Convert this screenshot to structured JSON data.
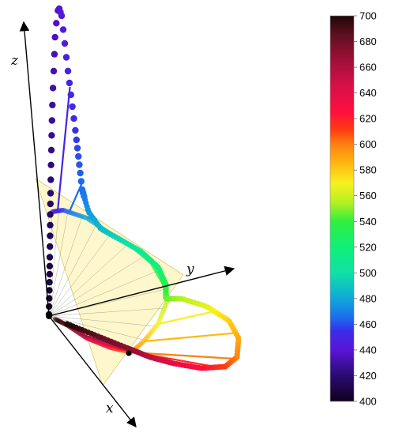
{
  "axes": {
    "x_label": "x",
    "y_label": "y",
    "z_label": "z"
  },
  "colorbar": {
    "ticks": [
      "700",
      "680",
      "660",
      "640",
      "620",
      "600",
      "580",
      "560",
      "540",
      "520",
      "500",
      "480",
      "460",
      "440",
      "420",
      "400"
    ],
    "range": [
      400,
      700
    ],
    "stops": [
      {
        "value": 400,
        "color": "#120020"
      },
      {
        "value": 420,
        "color": "#2a0a70"
      },
      {
        "value": 440,
        "color": "#5a14d8"
      },
      {
        "value": 455,
        "color": "#3a2ee8"
      },
      {
        "value": 465,
        "color": "#1a6cf0"
      },
      {
        "value": 480,
        "color": "#10a8d8"
      },
      {
        "value": 500,
        "color": "#10e0a8"
      },
      {
        "value": 520,
        "color": "#10f078"
      },
      {
        "value": 540,
        "color": "#30ee40"
      },
      {
        "value": 555,
        "color": "#b8f020"
      },
      {
        "value": 570,
        "color": "#f8f020"
      },
      {
        "value": 585,
        "color": "#ffb810"
      },
      {
        "value": 600,
        "color": "#ff8010"
      },
      {
        "value": 612,
        "color": "#ff3810"
      },
      {
        "value": 625,
        "color": "#ff1040"
      },
      {
        "value": 645,
        "color": "#d81048"
      },
      {
        "value": 665,
        "color": "#a01038"
      },
      {
        "value": 685,
        "color": "#601020"
      },
      {
        "value": 700,
        "color": "#1e0808"
      }
    ]
  },
  "chart_data": {
    "type": "3d-curve",
    "wavelength_range_nm": [
      400,
      700
    ],
    "colormap": "spectral wavelength"
  }
}
